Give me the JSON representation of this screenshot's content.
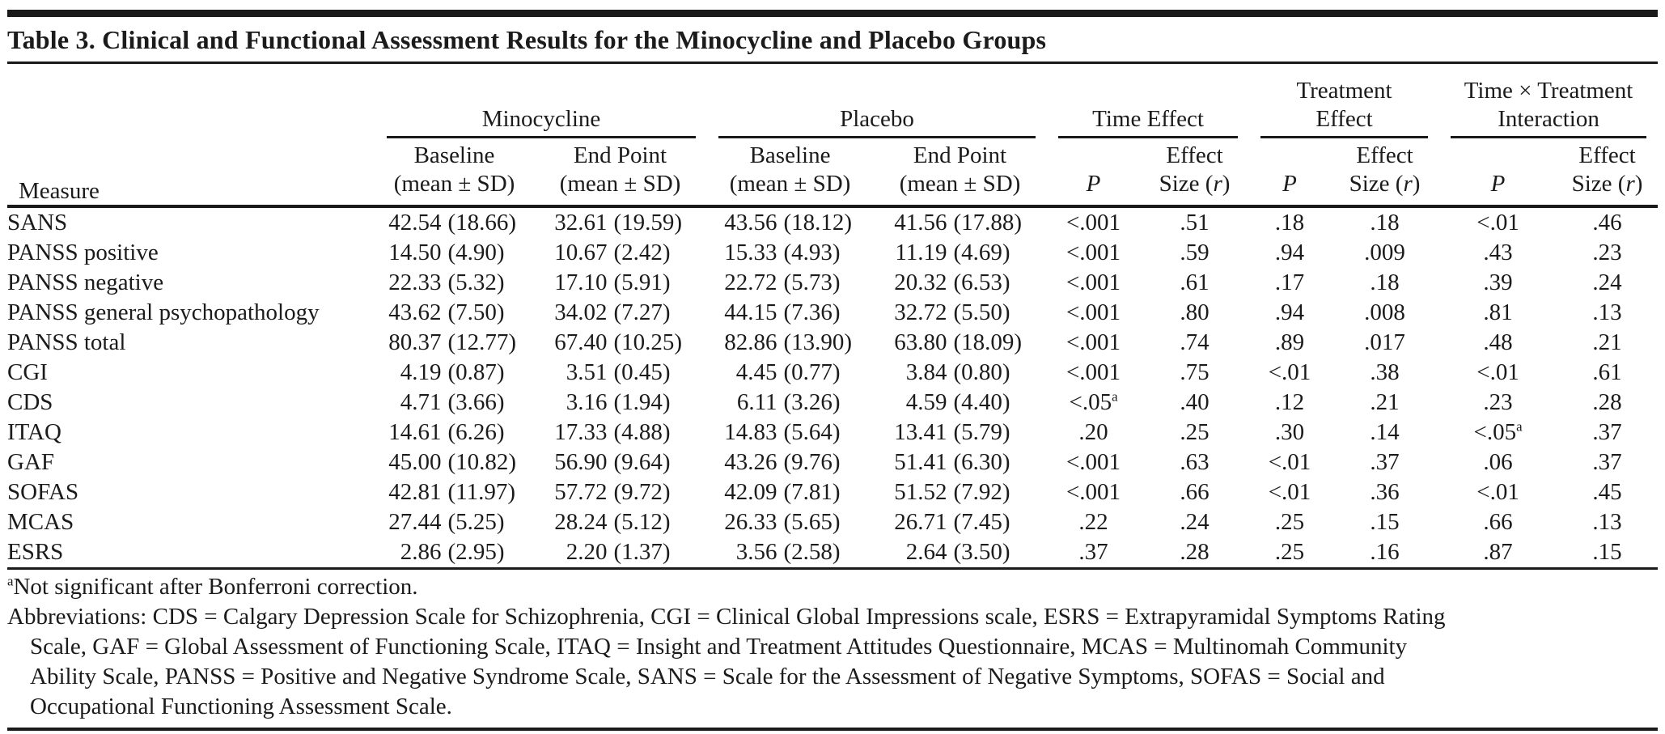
{
  "page": {
    "background": "#ffffff",
    "text_color": "#1b1b1b",
    "rule_color": "#1a1a1a"
  },
  "table": {
    "title": "Table 3. Clinical and Functional Assessment Results for the Minocycline and Placebo Groups",
    "measure_label": "Measure",
    "groups": [
      {
        "line1": "Minocycline"
      },
      {
        "line1": "Placebo"
      },
      {
        "line1": "Time Effect"
      },
      {
        "line1": "Treatment",
        "line2": "Effect"
      },
      {
        "line1": "Time × Treatment",
        "line2": "Interaction"
      }
    ],
    "subcols": {
      "baseline": "Baseline",
      "endpoint": "End Point",
      "mean_sd": "(mean ± SD)",
      "p": "P",
      "effect": "Effect",
      "size_pre": "Size (",
      "size_var": "r",
      "size_post": ")"
    },
    "row_keys": [
      "measure",
      "mino_baseline",
      "mino_endpoint",
      "placebo_baseline",
      "placebo_endpoint",
      "time_p",
      "time_es",
      "treat_p",
      "treat_es",
      "int_p",
      "int_es"
    ],
    "msd_keys": [
      "mino_baseline",
      "mino_endpoint",
      "placebo_baseline",
      "placebo_endpoint"
    ],
    "rows": [
      {
        "measure": "SANS",
        "mino_baseline": "42.54 (18.66)",
        "mino_endpoint": "32.61 (19.59)",
        "placebo_baseline": "43.56 (18.12)",
        "placebo_endpoint": "41.56 (17.88)",
        "time_p": "<.001",
        "time_es": ".51",
        "treat_p": ".18",
        "treat_es": ".18",
        "int_p": "<.01",
        "int_es": ".46"
      },
      {
        "measure": "PANSS positive",
        "mino_baseline": "14.50 (4.90)",
        "mino_endpoint": "10.67 (2.42)",
        "placebo_baseline": "15.33 (4.93)",
        "placebo_endpoint": "11.19 (4.69)",
        "time_p": "<.001",
        "time_es": ".59",
        "treat_p": ".94",
        "treat_es": ".009",
        "int_p": ".43",
        "int_es": ".23"
      },
      {
        "measure": "PANSS negative",
        "mino_baseline": "22.33 (5.32)",
        "mino_endpoint": "17.10 (5.91)",
        "placebo_baseline": "22.72 (5.73)",
        "placebo_endpoint": "20.32 (6.53)",
        "time_p": "<.001",
        "time_es": ".61",
        "treat_p": ".17",
        "treat_es": ".18",
        "int_p": ".39",
        "int_es": ".24"
      },
      {
        "measure": "PANSS general psychopathology",
        "mino_baseline": "43.62 (7.50)",
        "mino_endpoint": "34.02 (7.27)",
        "placebo_baseline": "44.15 (7.36)",
        "placebo_endpoint": "32.72 (5.50)",
        "time_p": "<.001",
        "time_es": ".80",
        "treat_p": ".94",
        "treat_es": ".008",
        "int_p": ".81",
        "int_es": ".13"
      },
      {
        "measure": "PANSS total",
        "mino_baseline": "80.37 (12.77)",
        "mino_endpoint": "67.40 (10.25)",
        "placebo_baseline": "82.86 (13.90)",
        "placebo_endpoint": "63.80 (18.09)",
        "time_p": "<.001",
        "time_es": ".74",
        "treat_p": ".89",
        "treat_es": ".017",
        "int_p": ".48",
        "int_es": ".21"
      },
      {
        "measure": "CGI",
        "mino_baseline": "4.19 (0.87)",
        "mino_endpoint": "3.51 (0.45)",
        "placebo_baseline": "4.45 (0.77)",
        "placebo_endpoint": "3.84 (0.80)",
        "time_p": "<.001",
        "time_es": ".75",
        "treat_p": "<.01",
        "treat_es": ".38",
        "int_p": "<.01",
        "int_es": ".61"
      },
      {
        "measure": "CDS",
        "mino_baseline": "4.71 (3.66)",
        "mino_endpoint": "3.16 (1.94)",
        "placebo_baseline": "6.11 (3.26)",
        "placebo_endpoint": "4.59 (4.40)",
        "time_p": "<.05^a",
        "time_es": ".40",
        "treat_p": ".12",
        "treat_es": ".21",
        "int_p": ".23",
        "int_es": ".28"
      },
      {
        "measure": "ITAQ",
        "mino_baseline": "14.61 (6.26)",
        "mino_endpoint": "17.33 (4.88)",
        "placebo_baseline": "14.83 (5.64)",
        "placebo_endpoint": "13.41 (5.79)",
        "time_p": ".20",
        "time_es": ".25",
        "treat_p": ".30",
        "treat_es": ".14",
        "int_p": "<.05^a",
        "int_es": ".37"
      },
      {
        "measure": "GAF",
        "mino_baseline": "45.00 (10.82)",
        "mino_endpoint": "56.90 (9.64)",
        "placebo_baseline": "43.26 (9.76)",
        "placebo_endpoint": "51.41 (6.30)",
        "time_p": "<.001",
        "time_es": ".63",
        "treat_p": "<.01",
        "treat_es": ".37",
        "int_p": ".06",
        "int_es": ".37"
      },
      {
        "measure": "SOFAS",
        "mino_baseline": "42.81 (11.97)",
        "mino_endpoint": "57.72 (9.72)",
        "placebo_baseline": "42.09 (7.81)",
        "placebo_endpoint": "51.52 (7.92)",
        "time_p": "<.001",
        "time_es": ".66",
        "treat_p": "<.01",
        "treat_es": ".36",
        "int_p": "<.01",
        "int_es": ".45"
      },
      {
        "measure": "MCAS",
        "mino_baseline": "27.44 (5.25)",
        "mino_endpoint": "28.24 (5.12)",
        "placebo_baseline": "26.33 (5.65)",
        "placebo_endpoint": "26.71 (7.45)",
        "time_p": ".22",
        "time_es": ".24",
        "treat_p": ".25",
        "treat_es": ".15",
        "int_p": ".66",
        "int_es": ".13"
      },
      {
        "measure": "ESRS",
        "mino_baseline": "2.86 (2.95)",
        "mino_endpoint": "2.20 (1.37)",
        "placebo_baseline": "3.56 (2.58)",
        "placebo_endpoint": "2.64 (3.50)",
        "time_p": ".37",
        "time_es": ".28",
        "treat_p": ".25",
        "treat_es": ".16",
        "int_p": ".87",
        "int_es": ".15"
      }
    ]
  },
  "footnotes": {
    "note_a": {
      "marker": "a",
      "text": "Not significant after Bonferroni correction."
    },
    "abbreviation_lines": [
      "Abbreviations: CDS = Calgary Depression Scale for Schizophrenia, CGI = Clinical Global Impressions scale, ESRS = Extrapyramidal Symptoms Rating",
      "Scale, GAF = Global Assessment of Functioning Scale, ITAQ = Insight and Treatment Attitudes Questionnaire, MCAS = Multinomah Community",
      "Ability Scale, PANSS = Positive and Negative Syndrome Scale, SANS = Scale for the Assessment of Negative Symptoms, SOFAS = Social and",
      "Occupational Functioning Assessment Scale."
    ]
  }
}
